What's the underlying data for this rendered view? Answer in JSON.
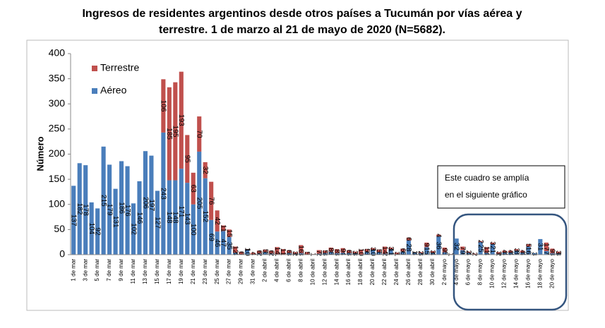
{
  "chart_data": {
    "type": "bar",
    "stacked": true,
    "title": [
      "Ingresos de residentes argentinos desde otros países a Tucumán por vías aérea y",
      "terrestre. 1 de marzo al 21 de mayo de 2020 (N=5682)."
    ],
    "ylabel": "Número",
    "annotation": [
      "Este cuadro se amplía",
      "en el siguiente gráfico"
    ],
    "ylim": [
      0,
      400
    ],
    "yticks": [
      0,
      50,
      100,
      150,
      200,
      250,
      300,
      350,
      400
    ],
    "legend": "upper left",
    "categories": [
      "1 de mar",
      null,
      "3 de mar",
      null,
      "5 de mar",
      null,
      "7 de mar",
      null,
      "9 de mar",
      null,
      "11 de mar",
      null,
      "13 de mar",
      null,
      "15 de mar",
      null,
      "17 de mar",
      null,
      "19 de mar",
      null,
      "21 de mar",
      null,
      "23 de mar",
      null,
      "25 de mar",
      null,
      "27 de mar",
      null,
      "29 de mar",
      null,
      "31 de mar",
      null,
      "2 de abril",
      null,
      "4 de abril",
      null,
      "6 de abril",
      null,
      "8 de abril",
      null,
      "10 de abril",
      null,
      "12 de abril",
      null,
      "14 de abril",
      null,
      "16 de abril",
      null,
      "18 de abril",
      null,
      "20 de abril",
      null,
      "22 de abril",
      null,
      "24 de abril",
      null,
      "26 de abril",
      null,
      "28 de abril",
      null,
      "30 de abril",
      null,
      "2 de mayo",
      null,
      "4 de mayo",
      null,
      "6 de mayo",
      null,
      "8 de mayo",
      null,
      "10 de mayo",
      null,
      "12 de mayo",
      null,
      "14 de mayo",
      null,
      "16 de mayo",
      null,
      "18 de mayo",
      null,
      "20 de mayo",
      null
    ],
    "series": [
      {
        "name": "Aéreo",
        "color": "#4a7ebb",
        "values": [
          137,
          182,
          178,
          104,
          92,
          215,
          179,
          131,
          186,
          176,
          102,
          146,
          206,
          197,
          127,
          243,
          148,
          148,
          171,
          143,
          100,
          205,
          152,
          69,
          46,
          47,
          35,
          4,
          0,
          10,
          0,
          2,
          5,
          2,
          1,
          0,
          3,
          2,
          3,
          0,
          0,
          2,
          3,
          6,
          3,
          4,
          3,
          3,
          0,
          6,
          10,
          5,
          2,
          11,
          1,
          6,
          28,
          4,
          3,
          15,
          4,
          36,
          5,
          0,
          32,
          9,
          4,
          0,
          25,
          4,
          21,
          2,
          4,
          4,
          8,
          4,
          16,
          3,
          31,
          7,
          3,
          3
        ]
      },
      {
        "name": "Terrestre",
        "color": "#c0504d",
        "values": [
          0,
          0,
          0,
          0,
          0,
          0,
          0,
          0,
          0,
          0,
          0,
          0,
          0,
          0,
          0,
          106,
          185,
          195,
          193,
          95,
          63,
          70,
          32,
          76,
          42,
          11,
          15,
          12,
          6,
          1,
          4,
          6,
          5,
          6,
          14,
          11,
          6,
          3,
          16,
          5,
          1,
          7,
          5,
          8,
          8,
          9,
          6,
          3,
          10,
          5,
          3,
          5,
          14,
          3,
          3,
          6,
          6,
          1,
          2,
          9,
          3,
          4,
          9,
          1,
          0,
          7,
          2,
          2,
          2,
          11,
          3,
          3,
          4,
          4,
          3,
          4,
          5,
          0,
          0,
          17,
          9,
          3
        ]
      }
    ]
  }
}
